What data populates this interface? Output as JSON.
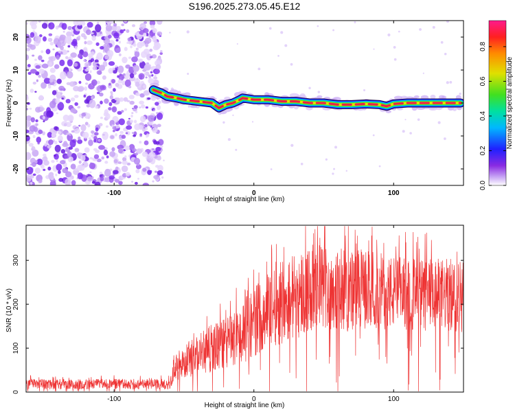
{
  "figure_title": "S196.2025.273.05.45.E12",
  "colorbar": {
    "label": "Normalized spectral amplitude",
    "ticks": [
      "0.0",
      "0.2",
      "0.4",
      "0.6",
      "0.8"
    ],
    "tick_values": [
      0.0,
      0.2,
      0.4,
      0.6,
      0.8
    ],
    "range": [
      0.0,
      0.95
    ]
  },
  "colors": {
    "snr_line": "#ee3333",
    "track_core": "#e8204a",
    "noise": "#7b2ff0"
  },
  "chart_data": [
    {
      "type": "heatmap",
      "title": "S196.2025.273.05.45.E12",
      "xlabel": "Height of straight line (km)",
      "ylabel": "Frequency (Hz)",
      "xlim": [
        -163,
        150
      ],
      "ylim": [
        -25,
        25
      ],
      "xticks": [
        -100,
        0,
        100
      ],
      "xtick_labels": [
        "-100",
        "0",
        "100"
      ],
      "yticks": [
        -20,
        -10,
        0,
        10,
        20
      ],
      "ytick_labels": [
        "-20",
        "-10",
        "0",
        "10",
        "20"
      ],
      "noise_region_x": [
        -163,
        -66
      ],
      "track": {
        "x": [
          -72,
          -66,
          -62,
          -55,
          -50,
          -40,
          -30,
          -25,
          -20,
          -15,
          -10,
          -8,
          0,
          10,
          20,
          30,
          40,
          50,
          60,
          70,
          80,
          90,
          95,
          100,
          110,
          120,
          130,
          140,
          148
        ],
        "freq": [
          4,
          3,
          2,
          1.5,
          1,
          0.5,
          0,
          -1.5,
          -0.5,
          0,
          1,
          1.5,
          1,
          1,
          0.5,
          0.5,
          0,
          0,
          -0.5,
          -0.5,
          -0.3,
          -0.5,
          -1,
          -0.3,
          0,
          0,
          0,
          0,
          0
        ]
      }
    },
    {
      "type": "line",
      "xlabel": "Height of straight line (km)",
      "ylabel": "SNR (10 * v/v)",
      "xlim": [
        -163,
        150
      ],
      "ylim": [
        0,
        380
      ],
      "xticks": [
        -100,
        0,
        100
      ],
      "xtick_labels": [
        "-100",
        "0",
        "100"
      ],
      "yticks": [
        0,
        100,
        200,
        300
      ],
      "ytick_labels": [
        "0",
        "100",
        "200",
        "300"
      ],
      "envelope": {
        "x": [
          -163,
          -60,
          -57,
          -50,
          -40,
          -30,
          -20,
          -10,
          0,
          10,
          20,
          30,
          40,
          50,
          60,
          70,
          80,
          90,
          100,
          110,
          120,
          130,
          140,
          150
        ],
        "base": [
          18,
          18,
          55,
          70,
          85,
          100,
          110,
          130,
          160,
          190,
          210,
          220,
          235,
          240,
          235,
          230,
          235,
          230,
          225,
          225,
          220,
          220,
          220,
          220
        ],
        "amp": [
          12,
          12,
          30,
          40,
          45,
          55,
          60,
          70,
          80,
          90,
          100,
          100,
          100,
          100,
          95,
          95,
          90,
          90,
          85,
          85,
          85,
          85,
          85,
          85
        ]
      }
    }
  ]
}
